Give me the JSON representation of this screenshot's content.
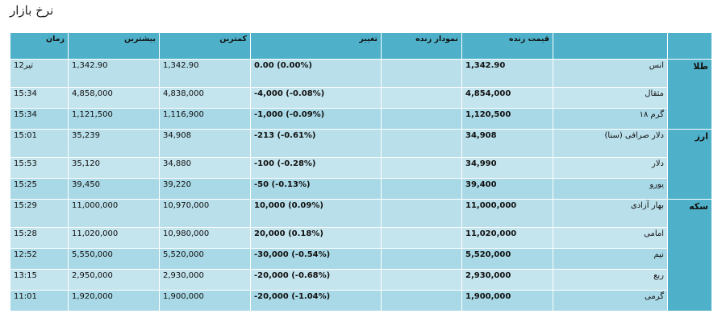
{
  "page": {
    "title": "نرخ بازار"
  },
  "table": {
    "headers": {
      "group": "",
      "name": "",
      "price": "قیمت زنده",
      "chart": "نمودار زنده",
      "change": "تغییر",
      "min": "کمترین",
      "max": "بیشترین",
      "time": "زمان"
    },
    "groups": [
      {
        "label": "طلا",
        "rows": [
          {
            "name": "انس",
            "price": "1,342.90",
            "chart": "",
            "change": "0.00 (0.00%)",
            "min": "1,342.90",
            "max": "1,342.90",
            "time": "12تیر"
          },
          {
            "name": "مثقال",
            "price": "4,854,000",
            "chart": "",
            "change": "-4,000 (-0.08%)",
            "min": "4,838,000",
            "max": "4,858,000",
            "time": "15:34"
          },
          {
            "name": "گرم ۱۸",
            "price": "1,120,500",
            "chart": "",
            "change": "-1,000 (-0.09%)",
            "min": "1,116,900",
            "max": "1,121,500",
            "time": "15:34"
          }
        ]
      },
      {
        "label": "ارز",
        "rows": [
          {
            "name": "دلار صرافی (سنا)",
            "price": "34,908",
            "chart": "",
            "change": "-213 (-0.61%)",
            "min": "34,908",
            "max": "35,239",
            "time": "15:01"
          },
          {
            "name": "دلار",
            "price": "34,990",
            "chart": "",
            "change": "-100 (-0.28%)",
            "min": "34,880",
            "max": "35,120",
            "time": "15:53"
          },
          {
            "name": "یورو",
            "price": "39,400",
            "chart": "",
            "change": "-50 (-0.13%)",
            "min": "39,220",
            "max": "39,450",
            "time": "15:25"
          }
        ]
      },
      {
        "label": "سکه",
        "rows": [
          {
            "name": "بهار آزادی",
            "price": "11,000,000",
            "chart": "",
            "change": "10,000 (0.09%)",
            "min": "10,970,000",
            "max": "11,000,000",
            "time": "15:29"
          },
          {
            "name": "امامی",
            "price": "11,020,000",
            "chart": "",
            "change": "20,000 (0.18%)",
            "min": "10,980,000",
            "max": "11,020,000",
            "time": "15:28"
          },
          {
            "name": "نیم",
            "price": "5,520,000",
            "chart": "",
            "change": "-30,000 (-0.54%)",
            "min": "5,520,000",
            "max": "5,550,000",
            "time": "12:52"
          },
          {
            "name": "ربع",
            "price": "2,930,000",
            "chart": "",
            "change": "-20,000 (-0.68%)",
            "min": "2,930,000",
            "max": "2,950,000",
            "time": "13:15"
          },
          {
            "name": "گرمی",
            "price": "1,900,000",
            "chart": "",
            "change": "-20,000 (-1.04%)",
            "min": "1,900,000",
            "max": "1,920,000",
            "time": "11:01"
          }
        ]
      }
    ]
  }
}
